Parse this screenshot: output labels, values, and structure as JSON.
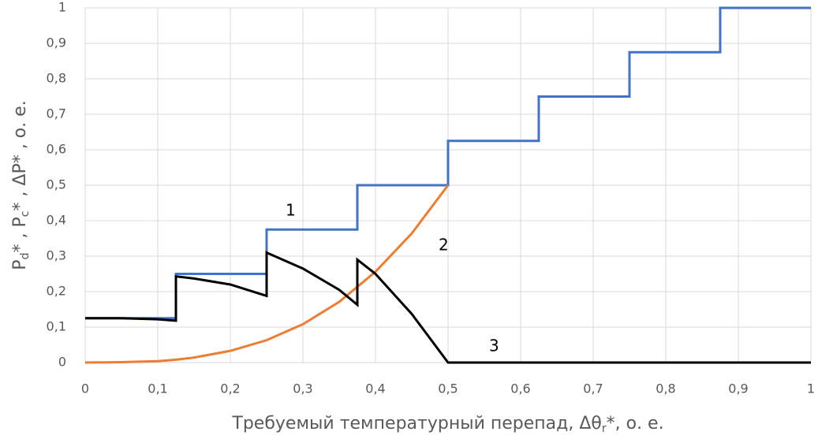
{
  "chart_data": {
    "type": "line",
    "xlabel_parts": [
      "Требуемый температурный перепад, Δθ",
      "r",
      "*, о. е."
    ],
    "ylabel_parts": [
      "P",
      "d",
      "* , P",
      "c",
      "* , ΔP* , о. е."
    ],
    "xlim": [
      0,
      1
    ],
    "xticks": [
      0,
      {
        "value": 0.1,
        "label": "0,1"
      },
      {
        "value": 0.2,
        "label": "0,2"
      },
      {
        "value": 0.3,
        "label": "0,3"
      },
      {
        "value": 0.4,
        "label": "0,4"
      },
      {
        "value": 0.5,
        "label": "0,5"
      },
      {
        "value": 0.6,
        "label": "0,6"
      },
      {
        "value": 0.7,
        "label": "0,7"
      },
      {
        "value": 0.8,
        "label": "0,8"
      },
      {
        "value": 0.9,
        "label": "0,9"
      },
      1
    ],
    "ylim": [
      0,
      1
    ],
    "yticks": [
      0,
      {
        "value": 0.1,
        "label": "0,1"
      },
      {
        "value": 0.2,
        "label": "0,2"
      },
      {
        "value": 0.3,
        "label": "0,3"
      },
      {
        "value": 0.4,
        "label": "0,4"
      },
      {
        "value": 0.5,
        "label": "0,5"
      },
      {
        "value": 0.6,
        "label": "0,6"
      },
      {
        "value": 0.7,
        "label": "0,7"
      },
      {
        "value": 0.8,
        "label": "0,8"
      },
      {
        "value": 0.9,
        "label": "0,9"
      },
      1
    ],
    "grid": true,
    "series": [
      {
        "color": "#4472c4",
        "x": [
          0,
          0.125,
          0.125,
          0.25,
          0.25,
          0.375,
          0.375,
          0.5,
          0.5,
          0.625,
          0.625,
          0.75,
          0.75,
          0.875,
          0.875,
          1
        ],
        "values": [
          0.125,
          0.125,
          0.25,
          0.25,
          0.375,
          0.375,
          0.5,
          0.5,
          0.625,
          0.625,
          0.75,
          0.75,
          0.875,
          0.875,
          1,
          1
        ]
      },
      {
        "color": "#ed7d31",
        "x": [
          0,
          0.05,
          0.1,
          0.125,
          0.15,
          0.2,
          0.25,
          0.3,
          0.35,
          0.4,
          0.45,
          0.5
        ],
        "values": [
          0,
          0.001,
          0.004,
          0.008,
          0.014,
          0.033,
          0.063,
          0.108,
          0.171,
          0.256,
          0.364,
          0.5
        ]
      },
      {
        "color": "#000000",
        "x": [
          0,
          0.05,
          0.1,
          0.125,
          0.125,
          0.15,
          0.2,
          0.25,
          0.25,
          0.3,
          0.35,
          0.375,
          0.375,
          0.4,
          0.45,
          0.5,
          1
        ],
        "values": [
          0.125,
          0.125,
          0.122,
          0.118,
          0.243,
          0.237,
          0.22,
          0.188,
          0.31,
          0.265,
          0.205,
          0.163,
          0.29,
          0.25,
          0.137,
          0,
          0
        ]
      }
    ],
    "annotations": [
      "1",
      "2",
      "3"
    ]
  }
}
